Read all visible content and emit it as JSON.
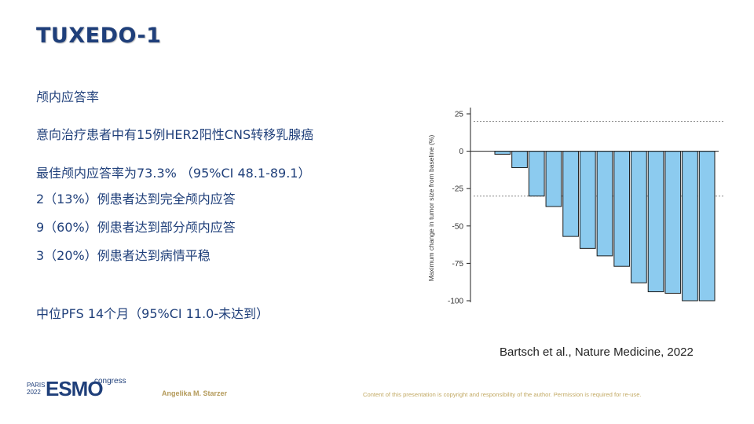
{
  "title": "TUXEDO-1",
  "bullets": [
    "颅内应答率",
    "意向治疗患者中有15例HER2阳性CNS转移乳腺癌",
    "最佳颅内应答率为73.3% （95%CI 48.1-89.1）",
    "2（13%）例患者达到完全颅内应答",
    "9（60%）例患者达到部分颅内应答",
    "3（20%）例患者达到病情平稳",
    "中位PFS 14个月（95%CI 11.0-未达到）"
  ],
  "citation": "Bartsch et al., Nature Medicine, 2022",
  "footer": {
    "city": "PARIS",
    "year": "2022",
    "esmo": "ESMO",
    "congress": "congress",
    "author": "Angelika M. Starzer",
    "copyright": "Content of this presentation is copyright and responsibility of the author. Permission is required for re-use."
  },
  "colors": {
    "bar": "#8ccbef",
    "bar_stroke": "#1c1c1c",
    "title": "#1f3f7a"
  },
  "chart_data": {
    "type": "bar",
    "title": "",
    "xlabel": "",
    "ylabel": "Maximum change in tumor size from baseline (%)",
    "ylim": [
      -100,
      25
    ],
    "yticks": [
      25,
      0,
      -25,
      -50,
      -75,
      -100
    ],
    "reference_lines": [
      20,
      -30
    ],
    "values": [
      -2,
      -11,
      -30,
      -37,
      -57,
      -65,
      -70,
      -77,
      -88,
      -94,
      -95,
      -100,
      -100
    ]
  }
}
